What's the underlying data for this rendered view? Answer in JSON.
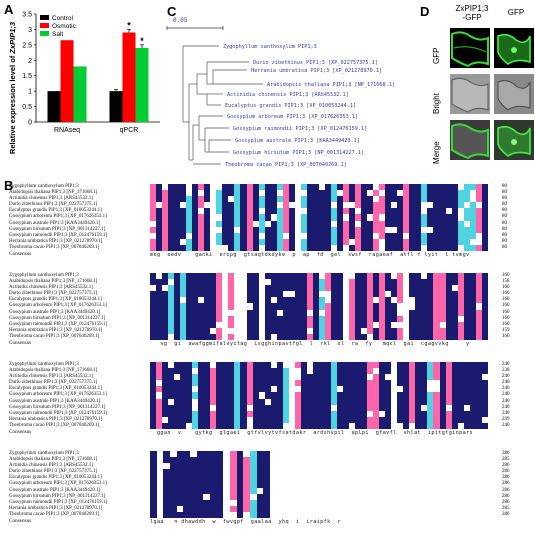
{
  "panels": {
    "A": "A",
    "B": "B",
    "C": "C",
    "D": "D"
  },
  "chart_data": {
    "type": "bar",
    "ylabel": "Relative expression level of ZxPIP1;3",
    "categories": [
      "RNAseq",
      "qPCR"
    ],
    "series": [
      {
        "name": "Control",
        "color": "#000000",
        "values": [
          1,
          1
        ]
      },
      {
        "name": "Osmotic",
        "color": "#ff0000",
        "values": [
          2.65,
          2.9
        ]
      },
      {
        "name": "Salt",
        "color": "#00cc33",
        "values": [
          1.8,
          2.4
        ]
      }
    ],
    "errors": {
      "qPCR": [
        0.05,
        0.1,
        0.1
      ]
    },
    "ylim": [
      0,
      3.5
    ],
    "yticks": [
      0,
      0.5,
      1,
      1.5,
      2,
      2.5,
      3,
      3.5
    ],
    "yticklabels": [
      "0",
      "0.5",
      "1",
      "1.5",
      "2",
      "2.5",
      "3",
      "3.5"
    ],
    "significance": {
      "qPCR": [
        "",
        "*",
        "*"
      ]
    },
    "legend": "top-left"
  },
  "tree": {
    "scale_label": "0.05",
    "leaves": [
      "Zygophyllum xanthoxylum PIP1;3",
      "Durio zibethinus PIP1;3 [XP_022757375.1]",
      "Herrania umbratica PIP1;3 [XP_021278970.1]",
      "Arabidopsis thaliana PIP1;3 [NP_171668.1]",
      "Actinidia chinensis PIP1;3 [ARS45532.1]",
      "Eucalyptus grandis PIP1;3 [XP_010053244.1]",
      "Gossypium arboreum PIP1;3 [XP_017626353.1]",
      "Gossypium raimondii PIP1;3 [XP_012476159.1]",
      "Gossypium australe PIP1;3 [KAA3449420.1]",
      "Gossypium hirsutum PIP1;3 [NP_001314227.1]",
      "Theobroma cacao PIP1;3 [XP_007040269.1]"
    ]
  },
  "micro": {
    "col1": "ZxPIP1;3\n-GFP",
    "col1_line1": "ZxPIP1;3",
    "col1_line2": "-GFP",
    "col2": "GFP",
    "rows": [
      "GFP",
      "Bright",
      "Merge"
    ]
  },
  "alignment": {
    "species": [
      "Zygophyllum xanthoxylum PIP1;3",
      "Arabidopsis thaliana PIP1;3 [NP_171668.1]",
      "Actinidia chinensis PIP1;3 [ARS45532.1]",
      "Durio zibethinus PIP1;3 [XP_022757375.1]",
      "Eucalyptus grandis PIP1;3 [XP_010053244.1]",
      "Gossypium arboreum PIP1;3 [XP_017626353.1]",
      "Gossypium australe PIP1;3 [KAA3449420.1]",
      "Gossypium hirsutum PIP1;3 [NP_001314227.1]",
      "Gossypium raimondii PIP1;3 [XP_012476159.1]",
      "Herrania umbratica PIP1;3 [XP_021278970.1]",
      "Theobroma cacao PIP1;3 [XP_007040269.1]"
    ],
    "consensus_label": "Consensus",
    "blocks": [
      {
        "ends": [
          "80",
          "80",
          "80",
          "80",
          "80",
          "80",
          "80",
          "80",
          "80",
          "80",
          "80"
        ],
        "consensus": "meg  eedv    ganki  ercpg  gtsaqtdkdyke  p  ap  fd  gel  swsf  ragaeaf  atfl f lyit  l tvmgv"
      },
      {
        "ends": [
          "160",
          "158",
          "160",
          "160",
          "160",
          "160",
          "160",
          "160",
          "160",
          "159",
          "160"
        ],
        "consensus": "   vg  gi  awafggmifalvyctag  isgghinpavtfgl  l  rkl  sl  ra  fy   mqcl  gai  cgagvvkg     y"
      },
      {
        "ends": [
          "240",
          "238",
          "240",
          "240",
          "240",
          "240",
          "240",
          "240",
          "240",
          "239",
          "240"
        ],
        "consensus": "  ggan  v    gytkg  glgaei  gtfvlvytvfsatdakr  ardshvpil  aplpi  gfavfl  vhlat  ipitgtginpars"
      },
      {
        "ends": [
          "286",
          "285",
          "286",
          "286",
          "286",
          "286",
          "286",
          "286",
          "286",
          "285",
          "286"
        ],
        "consensus": "lgaa   n dhawddh  w  fwvgpf  gaalaa  yhq  i  iraipfk  r"
      }
    ]
  }
}
